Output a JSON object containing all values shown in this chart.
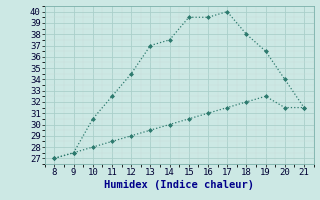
{
  "xlabel": "Humidex (Indice chaleur)",
  "xlim": [
    7.5,
    21.5
  ],
  "ylim": [
    26.5,
    40.5
  ],
  "xticks": [
    8,
    9,
    10,
    11,
    12,
    13,
    14,
    15,
    16,
    17,
    18,
    19,
    20,
    21
  ],
  "yticks": [
    27,
    28,
    29,
    30,
    31,
    32,
    33,
    34,
    35,
    36,
    37,
    38,
    39,
    40
  ],
  "line1_x": [
    8,
    9,
    10,
    11,
    12,
    13,
    14,
    15,
    16,
    17,
    18,
    19,
    20,
    21
  ],
  "line1_y": [
    27.0,
    27.5,
    30.5,
    32.5,
    34.5,
    37.0,
    37.5,
    39.5,
    39.5,
    40.0,
    38.0,
    36.5,
    34.0,
    31.5
  ],
  "line2_x": [
    8,
    9,
    10,
    11,
    12,
    13,
    14,
    15,
    16,
    17,
    18,
    19,
    20,
    21
  ],
  "line2_y": [
    27.0,
    27.5,
    28.0,
    28.5,
    29.0,
    29.5,
    30.0,
    30.5,
    31.0,
    31.5,
    32.0,
    32.5,
    31.5,
    31.5
  ],
  "line_color": "#2d7a6e",
  "bg_color": "#cce8e4",
  "grid_major_color": "#aacfca",
  "grid_minor_color": "#bbdbd6",
  "tick_fontsize": 6.5,
  "label_fontsize": 7.5,
  "figsize": [
    3.2,
    2.0
  ],
  "dpi": 100
}
